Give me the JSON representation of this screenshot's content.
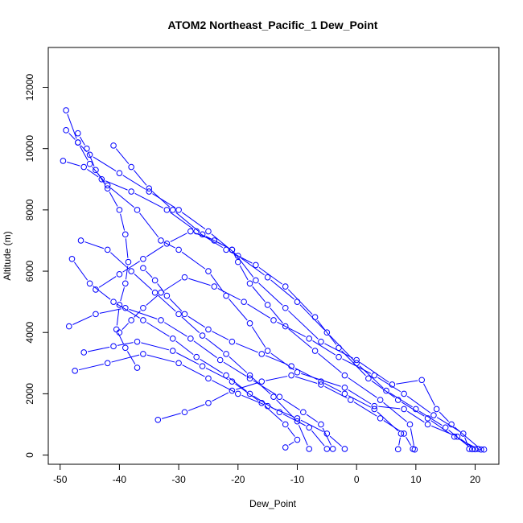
{
  "chart_data": {
    "type": "line",
    "title": "ATOM2 Northeast_Pacific_1 Dew_Point",
    "xlabel": "Dew_Point",
    "ylabel": "Altitude (m)",
    "xlim": [
      -52,
      24
    ],
    "ylim": [
      -300,
      13300
    ],
    "x_ticks": [
      -50,
      -40,
      -30,
      -20,
      -10,
      0,
      10,
      20
    ],
    "y_ticks": [
      0,
      2000,
      4000,
      6000,
      8000,
      10000,
      12000
    ],
    "grid": false,
    "legend": "none",
    "series_color": "#0000ff",
    "marker": "open-circle",
    "series": [
      {
        "points": [
          [
            21.5,
            180
          ],
          [
            20,
            190
          ],
          [
            17,
            600
          ],
          [
            12,
            1000
          ],
          [
            8,
            1500
          ],
          [
            3,
            1600
          ],
          [
            -2,
            2200
          ],
          [
            -10,
            2700
          ],
          [
            -15,
            3400
          ],
          [
            -18,
            4300
          ],
          [
            -22,
            5200
          ],
          [
            -25,
            6000
          ],
          [
            -30,
            6700
          ],
          [
            -33,
            7000
          ],
          [
            -37,
            8000
          ],
          [
            -42,
            8800
          ],
          [
            -45,
            9500
          ],
          [
            -47,
            10200
          ],
          [
            -49,
            11250
          ]
        ]
      },
      {
        "points": [
          [
            -49,
            10600
          ],
          [
            -47,
            10200
          ],
          [
            -45,
            9800
          ],
          [
            -40,
            9200
          ],
          [
            -35,
            8600
          ],
          [
            -30,
            8000
          ],
          [
            -25,
            7300
          ],
          [
            -20,
            6500
          ],
          [
            -15,
            5800
          ],
          [
            -10,
            5000
          ],
          [
            -5,
            4000
          ],
          [
            0,
            3000
          ],
          [
            5,
            2100
          ],
          [
            10,
            1500
          ],
          [
            15,
            900
          ],
          [
            19.5,
            190
          ]
        ]
      },
      {
        "points": [
          [
            -49.5,
            9600
          ],
          [
            -46,
            9400
          ],
          [
            -43,
            9000
          ],
          [
            -38,
            8600
          ],
          [
            -32,
            8000
          ],
          [
            -27,
            7300
          ],
          [
            -22,
            6700
          ],
          [
            -17,
            6200
          ],
          [
            -12,
            5500
          ],
          [
            -7,
            4500
          ],
          [
            -3,
            3500
          ],
          [
            2,
            2500
          ],
          [
            7,
            1800
          ],
          [
            12,
            1200
          ],
          [
            16.5,
            600
          ],
          [
            20.5,
            200
          ]
        ]
      },
      {
        "points": [
          [
            -48,
            6400
          ],
          [
            -45,
            5600
          ],
          [
            -41,
            5000
          ],
          [
            -36,
            4400
          ],
          [
            -31,
            3800
          ],
          [
            -27,
            3200
          ],
          [
            -22,
            2600
          ],
          [
            -18,
            2000
          ],
          [
            -13,
            1400
          ],
          [
            -8,
            900
          ],
          [
            -5,
            200
          ]
        ]
      },
      {
        "points": [
          [
            -48.5,
            4200
          ],
          [
            -44,
            4600
          ],
          [
            -39,
            4800
          ],
          [
            -33,
            4400
          ],
          [
            -28,
            3800
          ],
          [
            -23,
            3100
          ],
          [
            -18,
            2500
          ],
          [
            -13,
            1900
          ],
          [
            -9,
            1400
          ],
          [
            -6,
            1000
          ],
          [
            -4,
            200
          ]
        ]
      },
      {
        "points": [
          [
            -47.5,
            2750
          ],
          [
            -42,
            3000
          ],
          [
            -36,
            3300
          ],
          [
            -30,
            3000
          ],
          [
            -25,
            2500
          ],
          [
            -20,
            2000
          ],
          [
            -15,
            1600
          ],
          [
            -10,
            1200
          ],
          [
            -5,
            700
          ],
          [
            -2,
            200
          ]
        ]
      },
      {
        "points": [
          [
            -33.5,
            1150
          ],
          [
            -29,
            1400
          ],
          [
            -25,
            1700
          ],
          [
            -21,
            2100
          ],
          [
            -16,
            2400
          ],
          [
            -11,
            2600
          ],
          [
            -6,
            2300
          ],
          [
            -1,
            1800
          ],
          [
            4,
            1200
          ],
          [
            8,
            700
          ],
          [
            9.5,
            200
          ]
        ]
      },
      {
        "points": [
          [
            -46,
            3350
          ],
          [
            -41,
            3550
          ],
          [
            -37,
            3700
          ],
          [
            -31,
            3400
          ],
          [
            -26,
            2900
          ],
          [
            -21,
            2400
          ],
          [
            -16,
            1700
          ],
          [
            -12,
            1000
          ],
          [
            -10,
            500
          ],
          [
            -12,
            250
          ]
        ]
      },
      {
        "points": [
          [
            -46.5,
            7000
          ],
          [
            -42,
            6700
          ],
          [
            -38,
            6000
          ],
          [
            -34,
            5300
          ],
          [
            -30,
            4600
          ],
          [
            -26,
            3900
          ],
          [
            -22,
            3300
          ],
          [
            -18,
            2600
          ],
          [
            -14,
            1900
          ],
          [
            -10,
            1100
          ],
          [
            -8,
            200
          ]
        ]
      },
      {
        "points": [
          [
            -41,
            10100
          ],
          [
            -38,
            9400
          ],
          [
            -35,
            8700
          ],
          [
            -31,
            8000
          ],
          [
            -26,
            7200
          ],
          [
            -21,
            6700
          ],
          [
            -17,
            5700
          ],
          [
            -12,
            4800
          ],
          [
            -6,
            3700
          ],
          [
            0,
            3100
          ],
          [
            6,
            2300
          ],
          [
            11,
            2450
          ],
          [
            13.5,
            1500
          ],
          [
            16,
            1000
          ],
          [
            21,
            180
          ]
        ]
      },
      {
        "points": [
          [
            -40,
            4000
          ],
          [
            -38,
            4400
          ],
          [
            -36,
            4800
          ],
          [
            -33,
            5300
          ],
          [
            -29,
            5800
          ],
          [
            -24,
            5500
          ],
          [
            -19,
            5000
          ],
          [
            -14,
            4400
          ],
          [
            -8,
            3800
          ],
          [
            -3,
            3200
          ],
          [
            3,
            2600
          ],
          [
            8,
            2000
          ],
          [
            13,
            1300
          ],
          [
            18,
            700
          ],
          [
            19,
            200
          ]
        ]
      },
      {
        "points": [
          [
            -36,
            6100
          ],
          [
            -34,
            5700
          ],
          [
            -32,
            5200
          ],
          [
            -29,
            4600
          ],
          [
            -25,
            4100
          ],
          [
            -21,
            3700
          ],
          [
            -16,
            3300
          ],
          [
            -11,
            2900
          ],
          [
            -6,
            2400
          ],
          [
            -2,
            2000
          ],
          [
            3,
            1500
          ],
          [
            7.5,
            700
          ],
          [
            7,
            190
          ]
        ]
      },
      {
        "points": [
          [
            -44,
            5400
          ],
          [
            -40,
            5900
          ],
          [
            -36,
            6400
          ],
          [
            -32,
            6900
          ],
          [
            -28,
            7300
          ],
          [
            -24,
            7000
          ],
          [
            -21,
            6700
          ],
          [
            -20,
            6300
          ],
          [
            -18,
            5600
          ],
          [
            -15,
            4900
          ],
          [
            -12,
            4200
          ],
          [
            -7,
            3400
          ],
          [
            -2,
            2600
          ],
          [
            4,
            1800
          ],
          [
            9,
            1000
          ],
          [
            9.8,
            180
          ]
        ]
      },
      {
        "points": [
          [
            -47,
            10500
          ],
          [
            -45.5,
            10000
          ],
          [
            -44,
            9300
          ],
          [
            -42,
            8700
          ],
          [
            -40,
            8000
          ],
          [
            -39,
            7200
          ],
          [
            -38.5,
            6300
          ],
          [
            -39,
            5600
          ],
          [
            -40,
            4900
          ],
          [
            -40.5,
            4100
          ],
          [
            -39,
            3500
          ],
          [
            -37,
            2850
          ]
        ]
      }
    ]
  }
}
